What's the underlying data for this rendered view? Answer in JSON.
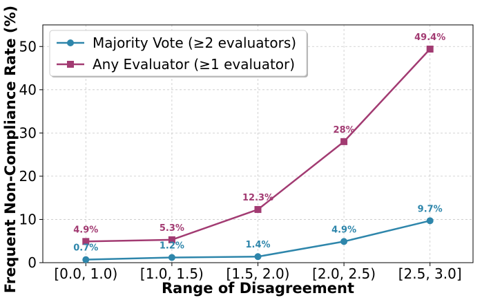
{
  "chart_data": {
    "type": "line",
    "title": "",
    "xlabel": "Range of Disagreement",
    "ylabel": "Frequent Non-Compliance Rate (%)",
    "categories": [
      "[0.0, 1.0)",
      "[1.0, 1.5)",
      "[1.5, 2.0)",
      "[2.0, 2.5)",
      "[2.5, 3.0]"
    ],
    "ylim": [
      0,
      55
    ],
    "yticks": [
      0,
      10,
      20,
      30,
      40,
      50
    ],
    "grid": true,
    "legend_position": "top-left",
    "series": [
      {
        "name": "Majority Vote (≥2 evaluators)",
        "values": [
          0.7,
          1.2,
          1.4,
          4.9,
          9.7
        ],
        "labels": [
          "0.7%",
          "1.2%",
          "1.4%",
          "4.9%",
          "9.7%"
        ],
        "color": "#2e86ab",
        "marker": "circle"
      },
      {
        "name": "Any Evaluator (≥1 evaluator)",
        "values": [
          4.9,
          5.3,
          12.3,
          28,
          49.4
        ],
        "labels": [
          "4.9%",
          "5.3%",
          "12.3%",
          "28%",
          "49.4%"
        ],
        "color": "#a23b72",
        "marker": "square"
      }
    ]
  }
}
